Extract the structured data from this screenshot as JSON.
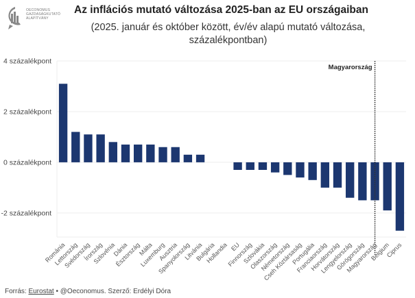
{
  "logo": {
    "name": "oeconomus-logo",
    "lines": [
      "OECONOMUS",
      "GAZDASÁGKUTATÓ",
      "ALAPÍTVÁNY"
    ]
  },
  "footer": {
    "prefix": "Forrás: ",
    "source_link": "Eurostat",
    "rest": " • @Oeconomus. Szerző: Erdélyi Dóra"
  },
  "colors": {
    "bar": "#1c3770",
    "grid": "#eeeeee",
    "annotation_line": "#333333"
  },
  "chart_data": {
    "type": "bar",
    "title": "Az inflációs mutató változása 2025-ban az EU országaiban",
    "subtitle_lines": [
      "(2025. január és október között, év/év alapú mutató változása,",
      "százalékpontban)"
    ],
    "xlabel": "",
    "ylabel": "",
    "ylim": [
      -2.95,
      4.0
    ],
    "yticks": [
      4,
      2,
      0,
      -2
    ],
    "ytick_labels": [
      "4 százalékpont",
      "2 százalékpont",
      "0 százalékpont",
      "-2 százalékpont"
    ],
    "grid": true,
    "legend": "none",
    "categories": [
      "Románia",
      "Lettország",
      "Svédország",
      "Írország",
      "Szlovénia",
      "Dánia",
      "Észtország",
      "Málta",
      "Luxemburg",
      "Ausztria",
      "Spanyolország",
      "Litvánia",
      "Bulgária",
      "Hollandia",
      "EU",
      "Finnország",
      "Szlovákia",
      "Olaszország",
      "Németország",
      "Cseh Köztársaság",
      "Portugália",
      "Franciaország",
      "Horvátország",
      "Lengyelország",
      "Görögország",
      "Magyarország",
      "Belgium",
      "Ciprus"
    ],
    "values": [
      3.1,
      1.2,
      1.1,
      1.1,
      0.8,
      0.7,
      0.7,
      0.7,
      0.6,
      0.6,
      0.3,
      0.3,
      0.0,
      0.0,
      -0.3,
      -0.3,
      -0.3,
      -0.4,
      -0.5,
      -0.6,
      -0.7,
      -1.0,
      -1.0,
      -1.4,
      -1.5,
      -1.5,
      -1.9,
      -2.7
    ],
    "annotations": [
      {
        "category": "Magyarország",
        "label": "Magyarország",
        "style": "dotted-vertical-line"
      }
    ]
  }
}
